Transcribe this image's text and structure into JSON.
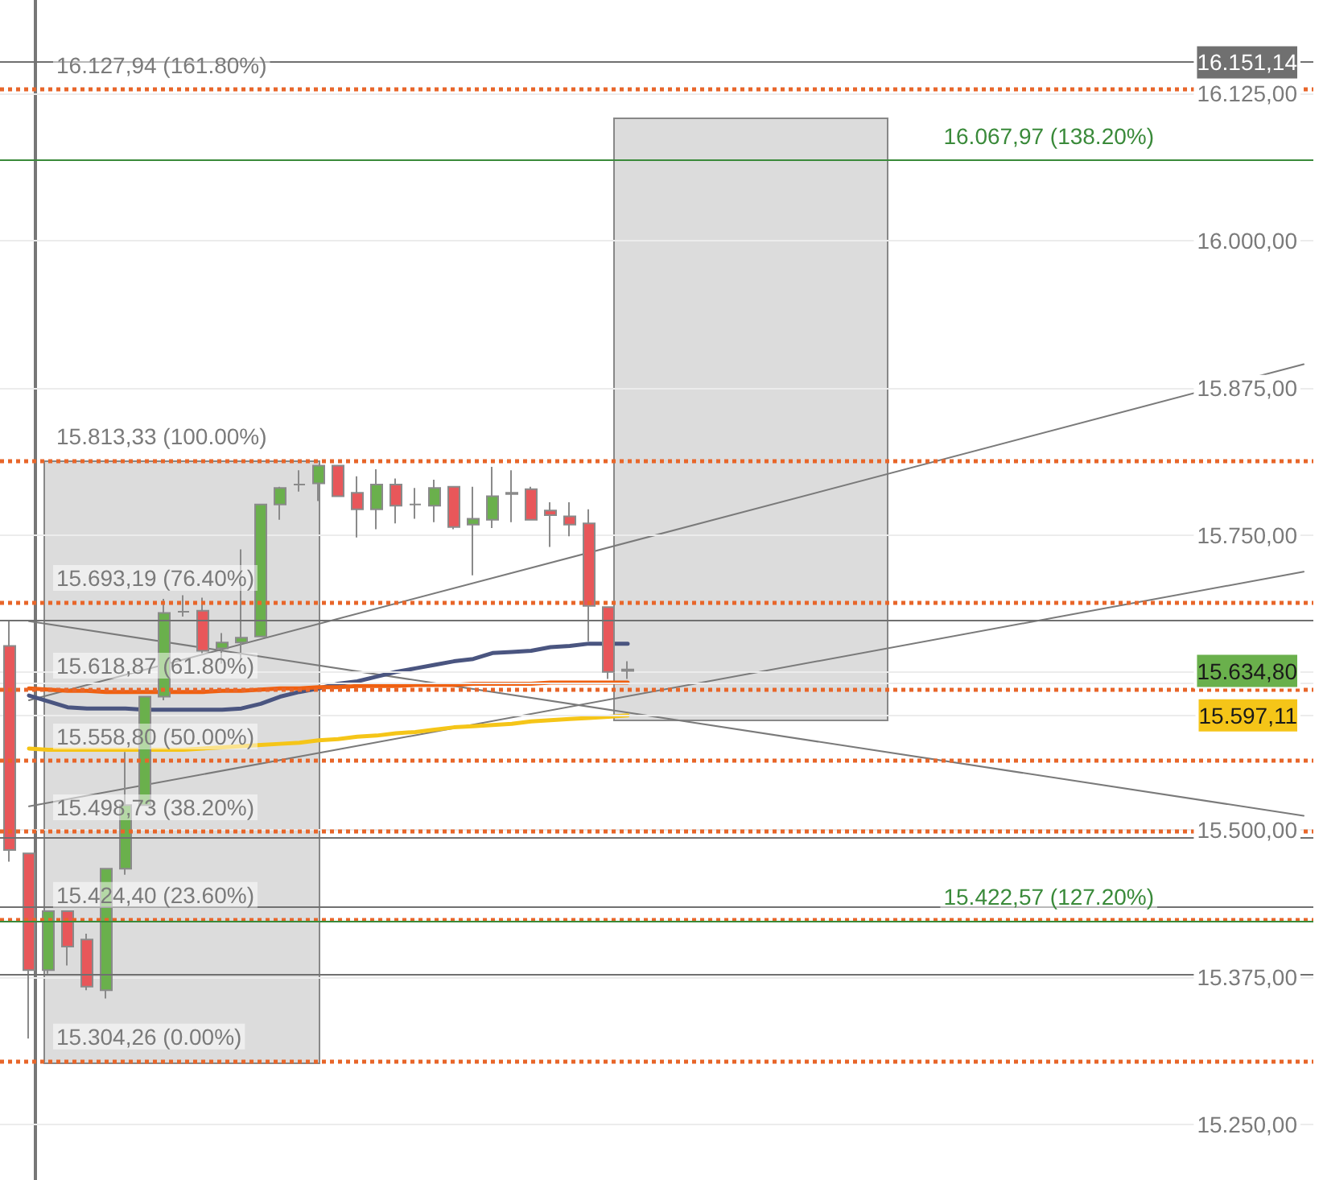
{
  "chart_data": {
    "type": "candlestick",
    "categories": [
      null,
      null,
      null,
      null,
      null,
      null,
      null,
      null,
      null,
      null,
      null,
      null,
      null,
      null,
      null,
      null,
      null,
      null,
      null,
      null,
      null,
      null,
      null,
      null,
      null,
      null,
      null,
      null,
      null,
      null,
      null,
      null,
      null,
      null,
      null,
      null,
      null,
      null,
      null,
      null,
      null,
      null,
      null,
      null,
      null,
      null,
      null,
      null,
      null,
      null,
      null,
      null,
      null,
      null,
      null,
      null,
      null,
      null,
      null,
      null,
      null,
      null,
      null,
      null,
      null,
      null,
      null,
      null
    ],
    "ohlc": [
      [
        15656,
        15678,
        15473,
        15483
      ],
      [
        15480,
        15480,
        15323,
        15381
      ],
      [
        15381,
        15431,
        15378,
        15431
      ],
      [
        15431,
        15431,
        15385,
        15401
      ],
      [
        15407,
        15412,
        15364,
        15367
      ],
      [
        15364,
        15467,
        15357,
        15467
      ],
      [
        15467,
        15566,
        15462,
        15521
      ],
      [
        15521,
        15613,
        15521,
        15613
      ],
      [
        15613,
        15696,
        15610,
        15684
      ],
      [
        15685,
        15699,
        15681,
        15685
      ],
      [
        15686,
        15697,
        15649,
        15652
      ],
      [
        15654,
        15667,
        15641,
        15659
      ],
      [
        15659,
        15738,
        15644,
        15663
      ],
      [
        15664,
        15776,
        15664,
        15776
      ],
      [
        15776,
        15791,
        15763,
        15790
      ],
      [
        15793,
        15805,
        15787,
        15793
      ],
      [
        15794,
        15809,
        15779,
        15809
      ],
      [
        15809,
        15809,
        15783,
        15783
      ],
      [
        15786,
        15800,
        15748,
        15772
      ],
      [
        15772,
        15806,
        15755,
        15793
      ],
      [
        15793,
        15798,
        15760,
        15775
      ],
      [
        15776,
        15790,
        15764,
        15776
      ],
      [
        15775,
        15797,
        15761,
        15790
      ],
      [
        15791,
        15791,
        15755,
        15757
      ],
      [
        15759,
        15791,
        15716,
        15764
      ],
      [
        15763,
        15808,
        15756,
        15783
      ],
      [
        15786,
        15805,
        15761,
        15785
      ],
      [
        15789,
        15791,
        15763,
        15763
      ],
      [
        15771,
        15778,
        15740,
        15767
      ],
      [
        15766,
        15778,
        15749,
        15759
      ],
      [
        15760,
        15772,
        15660,
        15690
      ],
      [
        15689,
        15689,
        15628,
        15634
      ],
      [
        15636,
        15643,
        15628,
        15634.8
      ],
      null,
      null,
      null,
      null,
      null,
      null,
      null,
      null,
      null,
      null,
      null,
      null,
      null,
      null,
      null,
      null,
      null,
      null,
      null,
      null,
      null,
      null,
      null,
      null,
      null,
      null,
      null,
      null,
      null,
      null,
      null,
      null,
      null,
      null,
      null
    ],
    "colors": [
      "#e8575a",
      "#e8575a",
      "#6ab04c",
      "#e8575a",
      "#e8575a",
      "#6ab04c",
      "#6ab04c",
      "#6ab04c",
      "#6ab04c",
      "#8a8a8a",
      "#e8575a",
      "#6ab04c",
      "#6ab04c",
      "#6ab04c",
      "#6ab04c",
      "#8a8a8a",
      "#6ab04c",
      "#e8575a",
      "#e8575a",
      "#6ab04c",
      "#e8575a",
      "#8a8a8a",
      "#6ab04c",
      "#e8575a",
      "#6ab04c",
      "#6ab04c",
      "#6ab04c",
      "#e8575a",
      "#e8575a",
      "#e8575a",
      "#e8575a",
      "#e8575a",
      "#e8575a",
      null,
      null,
      null,
      null,
      null,
      null,
      null,
      null,
      null,
      null,
      null,
      null,
      null,
      null,
      null,
      null,
      null,
      null,
      null,
      null,
      null,
      null,
      null,
      null,
      null,
      null,
      null,
      null,
      null,
      null,
      null,
      null,
      null,
      null,
      null
    ],
    "series": [
      {
        "type": "line",
        "color": "#4a5580",
        "values": [
          null,
          15614,
          15609,
          15604,
          15603,
          15603,
          15603,
          15602,
          15602,
          15602,
          15602,
          15602,
          15603,
          15607,
          15613,
          15617,
          15620,
          15624,
          15626,
          15630,
          15634,
          15637,
          15640,
          15643,
          15645,
          15650,
          15651,
          15652,
          15655,
          15656,
          15658,
          15658,
          15658,
          null,
          null,
          null,
          null,
          null,
          null,
          null,
          null,
          null,
          null,
          null,
          null,
          null,
          null,
          null,
          null,
          null,
          null,
          null,
          null,
          null,
          null,
          null,
          null,
          null,
          null,
          null,
          null,
          null,
          null,
          null,
          null,
          null,
          null,
          null
        ]
      },
      {
        "type": "line",
        "color": "#f06010",
        "values": [
          null,
          15620,
          15619,
          15618,
          15618,
          15617,
          15617,
          15617,
          15617,
          15617,
          15617,
          15618,
          15618,
          15619,
          15620,
          15620,
          15621,
          15621,
          15622,
          15622,
          15622,
          15623,
          15623,
          15623,
          15624,
          15624,
          15624,
          15624,
          15625,
          15625,
          15625,
          15625,
          15625,
          null,
          null,
          null,
          null,
          null,
          null,
          null,
          null,
          null,
          null,
          null,
          null,
          null,
          null,
          null,
          null,
          null,
          null,
          null,
          null,
          null,
          null,
          null,
          null,
          null,
          null,
          null,
          null,
          null,
          null,
          null,
          null,
          null,
          null,
          null
        ]
      },
      {
        "type": "line",
        "color": "#f5c518",
        "values": [
          null,
          15569,
          15568,
          15568,
          15568,
          15568,
          15568,
          15568,
          15568,
          15568,
          15569,
          15570,
          15571,
          15572,
          15573,
          15574,
          15576,
          15577,
          15579,
          15580,
          15582,
          15583,
          15585,
          15587,
          15588,
          15589,
          15590,
          15592,
          15593,
          15594,
          15595,
          15596,
          15597.11,
          null,
          null,
          null,
          null,
          null,
          null,
          null,
          null,
          null,
          null,
          null,
          null,
          null,
          null,
          null,
          null,
          null,
          null,
          null,
          null,
          null,
          null,
          null,
          null,
          null,
          null,
          null,
          null,
          null,
          null,
          null,
          null,
          null,
          null,
          null
        ]
      },
      {
        "type": "line",
        "color": "#7a7a7a",
        "values": [
          null,
          15610,
          null,
          null,
          null,
          null,
          null,
          null,
          null,
          null,
          null,
          null,
          null,
          null,
          null,
          null,
          null,
          null,
          null,
          null,
          null,
          null,
          null,
          null,
          null,
          null,
          null,
          null,
          null,
          null,
          null,
          null,
          null,
          null,
          null,
          null,
          null,
          null,
          null,
          null,
          null,
          null,
          null,
          null,
          null,
          null,
          null,
          null,
          null,
          null,
          null,
          null,
          null,
          null,
          null,
          null,
          null,
          null,
          null,
          null,
          null,
          null,
          null,
          null,
          null,
          null,
          null,
          15895
        ]
      },
      {
        "type": "line",
        "color": "#7a7a7a",
        "values": [
          null,
          15520,
          null,
          null,
          null,
          null,
          null,
          null,
          null,
          null,
          null,
          null,
          null,
          null,
          null,
          null,
          null,
          null,
          null,
          null,
          null,
          null,
          null,
          null,
          null,
          null,
          null,
          null,
          null,
          null,
          null,
          null,
          null,
          null,
          null,
          null,
          null,
          null,
          null,
          null,
          null,
          null,
          null,
          null,
          null,
          null,
          null,
          null,
          null,
          null,
          null,
          null,
          null,
          null,
          null,
          null,
          null,
          null,
          null,
          null,
          null,
          null,
          null,
          null,
          null,
          null,
          null,
          15719
        ]
      },
      {
        "type": "line",
        "color": "#7a7a7a",
        "values": [
          null,
          15677,
          null,
          null,
          null,
          null,
          null,
          null,
          null,
          null,
          null,
          null,
          null,
          null,
          null,
          null,
          null,
          null,
          null,
          null,
          null,
          null,
          null,
          null,
          null,
          null,
          null,
          null,
          null,
          null,
          null,
          null,
          null,
          null,
          null,
          null,
          null,
          null,
          null,
          null,
          null,
          null,
          null,
          null,
          null,
          null,
          null,
          null,
          null,
          null,
          null,
          null,
          null,
          null,
          null,
          null,
          null,
          null,
          null,
          null,
          null,
          null,
          null,
          null,
          null,
          null,
          null,
          15512
        ]
      }
    ],
    "ylim": [
      15203,
      16204
    ],
    "yticks": [
      {
        "value": 15250,
        "label": "15.250,00"
      },
      {
        "value": 15375,
        "label": "15.375,00"
      },
      {
        "value": 15500,
        "label": "15.500,00"
      },
      {
        "value": 15597.11,
        "label": "15.597,11"
      },
      {
        "value": 15625,
        "label": null
      },
      {
        "value": 15634.8,
        "label": "15.634,80"
      },
      {
        "value": 15750,
        "label": "15.750,00"
      },
      {
        "value": 15875,
        "label": "15.875,00"
      },
      {
        "value": 16000,
        "label": "16.000,00"
      },
      {
        "value": 16125,
        "label": "16.125,00"
      },
      {
        "value": 16151.14,
        "label": "16.151,14"
      }
    ],
    "ref_lines": [
      {
        "axis": "y",
        "value": 16127.94,
        "label": "16.127,94 (161.80%)",
        "color": "#e8662a",
        "line_style": "dotted"
      },
      {
        "axis": "y",
        "value": 15813.33,
        "label": "15.813,33 (100.00%)",
        "color": "#e8662a",
        "line_style": "dotted"
      },
      {
        "axis": "y",
        "value": 15693.19,
        "label": "15.693,19 (76.40%)",
        "color": "#e8662a",
        "line_style": "dotted"
      },
      {
        "axis": "y",
        "value": 15618.87,
        "label": "15.618,87 (61.80%)",
        "color": "#e8662a",
        "line_style": "dotted"
      },
      {
        "axis": "y",
        "value": 15558.8,
        "label": "15.558,80 (50.00%)",
        "color": "#e8662a",
        "line_style": "dotted"
      },
      {
        "axis": "y",
        "value": 15498.73,
        "label": "15.498,73 (38.20%)",
        "color": "#e8662a",
        "line_style": "dotted"
      },
      {
        "axis": "y",
        "value": 15424.4,
        "label": "15.424,40 (23.60%)",
        "color": "#e8662a",
        "line_style": "dotted"
      },
      {
        "axis": "y",
        "value": 15304.26,
        "label": "15.304,26 (0.00%)",
        "color": "#e8662a",
        "line_style": "dotted"
      },
      {
        "axis": "y",
        "value": 16067.97,
        "label": "16.067,97 (138.20%)",
        "color": "#3a8a3a",
        "line_style": "solid"
      },
      {
        "axis": "y",
        "value": 15422.57,
        "label": "15.422,57 (127.20%)",
        "color": "#3a8a3a",
        "line_style": "solid"
      },
      {
        "axis": "y",
        "value": 16151.14,
        "color": "#707070",
        "line_style": "solid"
      },
      {
        "axis": "y",
        "value": 15678,
        "color": "#707070",
        "line_style": "solid"
      },
      {
        "axis": "y",
        "value": 15494,
        "color": "#707070",
        "line_style": "solid"
      },
      {
        "axis": "y",
        "value": 15435,
        "color": "#707070",
        "line_style": "solid"
      },
      {
        "axis": "y",
        "value": 15377,
        "color": "#707070",
        "line_style": "solid"
      }
    ],
    "grid": "y",
    "marker": "none",
    "tick_labels": "y"
  }
}
